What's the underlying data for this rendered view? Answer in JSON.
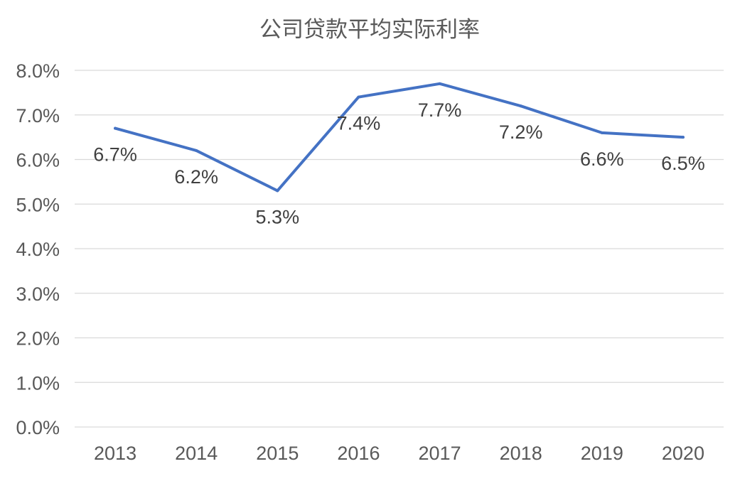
{
  "chart_data": {
    "type": "line",
    "title": "公司贷款平均实际利率",
    "categories": [
      "2013",
      "2014",
      "2015",
      "2016",
      "2017",
      "2018",
      "2019",
      "2020"
    ],
    "series": [
      {
        "values": [
          6.7,
          6.2,
          5.3,
          7.4,
          7.7,
          7.2,
          6.6,
          6.5
        ]
      }
    ],
    "data_labels": [
      "6.7%",
      "6.2%",
      "5.3%",
      "7.4%",
      "7.7%",
      "7.2%",
      "6.6%",
      "6.5%"
    ],
    "y_ticks": [
      {
        "value": 0,
        "label": "0.0%"
      },
      {
        "value": 1,
        "label": "1.0%"
      },
      {
        "value": 2,
        "label": "2.0%"
      },
      {
        "value": 3,
        "label": "3.0%"
      },
      {
        "value": 4,
        "label": "4.0%"
      },
      {
        "value": 5,
        "label": "5.0%"
      },
      {
        "value": 6,
        "label": "6.0%"
      },
      {
        "value": 7,
        "label": "7.0%"
      },
      {
        "value": 8,
        "label": "8.0%"
      }
    ],
    "ylim": [
      0,
      8
    ],
    "grid": true,
    "legend": "none",
    "colors": {
      "line": "#4472c4",
      "grid": "#d9d9d9",
      "text": "#595959"
    }
  }
}
